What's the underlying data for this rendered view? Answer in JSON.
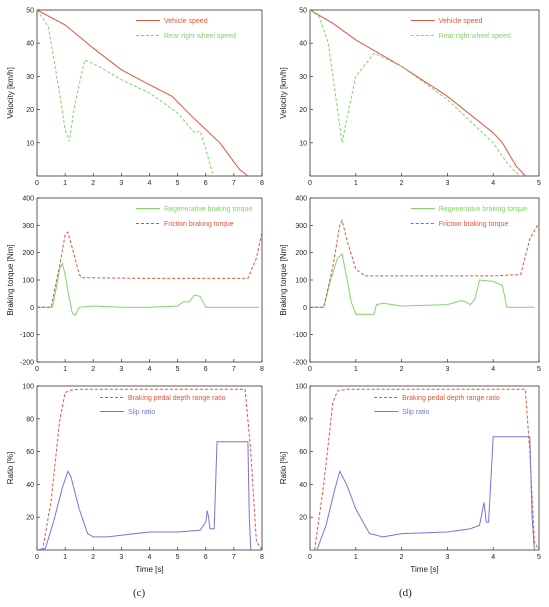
{
  "captions": {
    "c": "(c)",
    "d": "(d)"
  },
  "colors": {
    "red": "#e0553a",
    "green": "#7fd667",
    "blue": "#7a72e0",
    "axis": "#333333"
  },
  "chart_data": [
    {
      "id": "c-velocity",
      "type": "line",
      "xlabel": "",
      "ylabel": "Velocity [km/h]",
      "xlim": [
        0,
        8
      ],
      "ylim": [
        0,
        50
      ],
      "xticks": [
        0,
        1,
        2,
        3,
        4,
        5,
        6,
        7,
        8
      ],
      "yticks": [
        10,
        20,
        30,
        40,
        50
      ],
      "legend": "top-right",
      "series": [
        {
          "name": "Vehicle speed",
          "color": "red",
          "dash": "",
          "x": [
            0,
            1,
            2,
            3,
            4,
            4.8,
            5.5,
            6.5,
            7.2,
            7.5
          ],
          "y": [
            50,
            45.5,
            38.5,
            32,
            27.5,
            24,
            18,
            10,
            2,
            0
          ]
        },
        {
          "name": "Rear right wheel speed",
          "color": "green",
          "dash": "3,2",
          "x": [
            0,
            0.4,
            0.8,
            1.0,
            1.15,
            1.35,
            1.7,
            2.2,
            3,
            4,
            5,
            5.6,
            5.8,
            6.0,
            6.2,
            6.3
          ],
          "y": [
            50,
            45,
            25,
            14,
            10.5,
            22,
            35,
            33,
            29,
            25,
            19,
            13,
            13.5,
            8,
            2,
            0
          ]
        }
      ]
    },
    {
      "id": "c-torque",
      "type": "line",
      "xlabel": "",
      "ylabel": "Braking torque [Nm]",
      "xlim": [
        0,
        8
      ],
      "ylim": [
        -200,
        400
      ],
      "xticks": [
        0,
        1,
        2,
        3,
        4,
        5,
        6,
        7,
        8
      ],
      "yticks": [
        -200,
        -100,
        0,
        100,
        200,
        300,
        400
      ],
      "legend": "top-right",
      "series": [
        {
          "name": "Regenerative braking torque",
          "color": "green",
          "dash": "",
          "x": [
            0,
            0.55,
            0.7,
            0.8,
            0.9,
            1.0,
            1.1,
            1.25,
            1.35,
            1.5,
            2,
            3,
            4,
            5,
            5.2,
            5.4,
            5.6,
            5.8,
            6.0,
            7,
            7.9
          ],
          "y": [
            0,
            0,
            80,
            140,
            160,
            120,
            60,
            -20,
            -30,
            0,
            5,
            0,
            0,
            5,
            20,
            20,
            45,
            40,
            0,
            0,
            0
          ]
        },
        {
          "name": "Friction braking torque",
          "color": "red",
          "dash": "3,2",
          "x": [
            0,
            0.5,
            0.8,
            1.0,
            1.1,
            1.3,
            1.5,
            1.6,
            2,
            4,
            6,
            7.5,
            7.8,
            8.0
          ],
          "y": [
            0,
            0,
            150,
            265,
            275,
            200,
            120,
            108,
            108,
            106,
            106,
            106,
            180,
            275
          ]
        }
      ]
    },
    {
      "id": "c-ratio",
      "type": "line",
      "xlabel": "Time [s]",
      "ylabel": "Ratio [%]",
      "xlim": [
        0,
        8
      ],
      "ylim": [
        0,
        100
      ],
      "xticks": [
        0,
        1,
        2,
        3,
        4,
        5,
        6,
        7,
        8
      ],
      "yticks": [
        20,
        40,
        60,
        80,
        100
      ],
      "legend": "top-center",
      "series": [
        {
          "name": "Braking pedal depth range ratio",
          "color": "red",
          "dash": "3,2",
          "x": [
            0,
            0.2,
            0.5,
            0.8,
            1.0,
            1.2,
            1.5,
            3,
            5,
            7.4,
            7.6,
            7.8,
            8.0
          ],
          "y": [
            0,
            0,
            30,
            78,
            96,
            97.5,
            98,
            98,
            98,
            98,
            60,
            5,
            0
          ]
        },
        {
          "name": "Slip ratio",
          "color": "blue",
          "dash": "",
          "x": [
            0,
            0.3,
            0.6,
            0.9,
            1.1,
            1.2,
            1.5,
            1.8,
            2.0,
            2.5,
            3,
            4,
            5,
            5.8,
            6.0,
            6.05,
            6.1,
            6.15,
            6.2,
            6.3,
            6.4,
            7.5,
            7.55,
            7.6
          ],
          "y": [
            0,
            1,
            18,
            38,
            48,
            45,
            25,
            10,
            8,
            8,
            9,
            11,
            11,
            12,
            17,
            24,
            20,
            13,
            13,
            13,
            66,
            66,
            20,
            0
          ]
        }
      ]
    },
    {
      "id": "d-velocity",
      "type": "line",
      "xlabel": "",
      "ylabel": "Velocity [km/h]",
      "xlim": [
        0,
        5
      ],
      "ylim": [
        0,
        50
      ],
      "xticks": [
        0,
        1,
        2,
        3,
        4,
        5
      ],
      "yticks": [
        10,
        20,
        30,
        40,
        50
      ],
      "legend": "top-right",
      "series": [
        {
          "name": "Vehicle speed",
          "color": "red",
          "dash": "",
          "x": [
            0,
            0.5,
            1,
            2,
            3,
            4,
            4.2,
            4.5,
            4.7
          ],
          "y": [
            50,
            46,
            41,
            33,
            24,
            13,
            10,
            3,
            0
          ]
        },
        {
          "name": "Rear right wheel speed",
          "color": "green",
          "dash": "3,2",
          "x": [
            0,
            0.2,
            0.4,
            0.6,
            0.7,
            0.8,
            1.0,
            1.4,
            2,
            3,
            4,
            4.3,
            4.5,
            4.6
          ],
          "y": [
            50,
            48,
            40,
            20,
            10,
            17,
            30,
            37,
            33,
            23,
            10,
            4,
            1,
            0
          ]
        }
      ]
    },
    {
      "id": "d-torque",
      "type": "line",
      "xlabel": "",
      "ylabel": "Braking torque [Nm]",
      "xlim": [
        0,
        5
      ],
      "ylim": [
        -200,
        400
      ],
      "xticks": [
        0,
        1,
        2,
        3,
        4,
        5
      ],
      "yticks": [
        -200,
        -100,
        0,
        100,
        200,
        300,
        400
      ],
      "legend": "top-right",
      "series": [
        {
          "name": "Regenerative braking torque",
          "color": "green",
          "dash": "",
          "x": [
            0,
            0.3,
            0.45,
            0.6,
            0.7,
            0.8,
            0.9,
            1.0,
            1.4,
            1.45,
            1.6,
            2,
            3,
            3.3,
            3.4,
            3.5,
            3.6,
            3.7,
            4.0,
            4.2,
            4.3,
            4.9
          ],
          "y": [
            0,
            0,
            100,
            180,
            195,
            110,
            20,
            -25,
            -25,
            10,
            15,
            5,
            10,
            25,
            20,
            10,
            30,
            100,
            95,
            80,
            0,
            0
          ]
        },
        {
          "name": "Friction braking torque",
          "color": "red",
          "dash": "3,2",
          "x": [
            0,
            0.3,
            0.5,
            0.65,
            0.7,
            0.8,
            1.0,
            1.2,
            2,
            3,
            4,
            4.6,
            4.8,
            5.0
          ],
          "y": [
            0,
            0,
            150,
            300,
            318,
            250,
            140,
            115,
            115,
            115,
            115,
            120,
            250,
            310
          ]
        }
      ]
    },
    {
      "id": "d-ratio",
      "type": "line",
      "xlabel": "Time [s]",
      "ylabel": "Ratio [%]",
      "xlim": [
        0,
        5
      ],
      "ylim": [
        0,
        100
      ],
      "xticks": [
        0,
        1,
        2,
        3,
        4,
        5
      ],
      "yticks": [
        20,
        40,
        60,
        80,
        100
      ],
      "legend": "top-center",
      "series": [
        {
          "name": "Braking pedal depth range ratio",
          "color": "red",
          "dash": "3,2",
          "x": [
            0,
            0.1,
            0.3,
            0.5,
            0.6,
            0.8,
            2,
            4,
            4.7,
            4.8,
            4.9,
            5.0
          ],
          "y": [
            0,
            0,
            40,
            90,
            97,
            98,
            98,
            98,
            98,
            60,
            5,
            0
          ]
        },
        {
          "name": "Slip ratio",
          "color": "blue",
          "dash": "",
          "x": [
            0,
            0.15,
            0.35,
            0.55,
            0.65,
            0.8,
            1.0,
            1.3,
            1.6,
            2,
            3,
            3.5,
            3.7,
            3.75,
            3.8,
            3.85,
            3.9,
            4.0,
            4.8,
            4.85,
            4.9
          ],
          "y": [
            0,
            0,
            15,
            38,
            48,
            40,
            25,
            10,
            8,
            10,
            11,
            13,
            15,
            22,
            29,
            17,
            17,
            69,
            69,
            20,
            0
          ]
        }
      ]
    }
  ]
}
